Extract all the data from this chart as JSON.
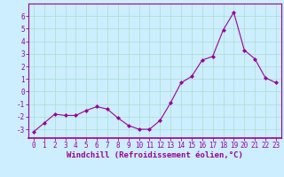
{
  "x": [
    0,
    1,
    2,
    3,
    4,
    5,
    6,
    7,
    8,
    9,
    10,
    11,
    12,
    13,
    14,
    15,
    16,
    17,
    18,
    19,
    20,
    21,
    22,
    23
  ],
  "y": [
    -3.2,
    -2.5,
    -1.8,
    -1.9,
    -1.9,
    -1.5,
    -1.2,
    -1.4,
    -2.1,
    -2.7,
    -3.0,
    -3.0,
    -2.3,
    -0.9,
    0.7,
    1.2,
    2.5,
    2.8,
    4.9,
    6.3,
    3.3,
    2.6,
    1.1,
    0.7
  ],
  "line_color": "#990099",
  "marker": "D",
  "markersize": 2,
  "linewidth": 0.8,
  "xlabel": "Windchill (Refroidissement éolien,°C)",
  "xlabel_fontsize": 6.5,
  "xtick_labels": [
    "0",
    "1",
    "2",
    "3",
    "4",
    "5",
    "6",
    "7",
    "8",
    "9",
    "10",
    "11",
    "12",
    "13",
    "14",
    "15",
    "16",
    "17",
    "18",
    "19",
    "20",
    "21",
    "22",
    "23"
  ],
  "ytick_values": [
    -3,
    -2,
    -1,
    0,
    1,
    2,
    3,
    4,
    5,
    6
  ],
  "ylim": [
    -3.7,
    7.0
  ],
  "xlim": [
    -0.5,
    23.5
  ],
  "bg_color": "#cceeff",
  "grid_color": "#aaddcc",
  "tick_color": "#990099",
  "tick_fontsize": 5.5,
  "spine_color": "#990099"
}
